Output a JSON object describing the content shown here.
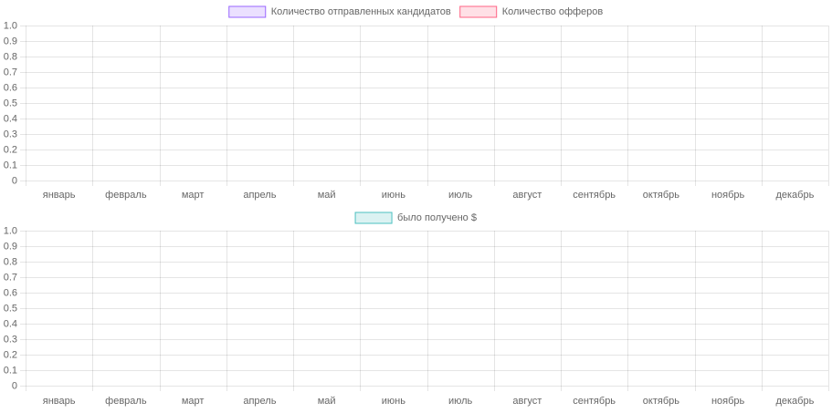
{
  "chart_data": [
    {
      "type": "bar",
      "categories": [
        "январь",
        "февраль",
        "март",
        "апрель",
        "май",
        "июнь",
        "июль",
        "август",
        "сентябрь",
        "октябрь",
        "ноябрь",
        "декабрь"
      ],
      "series": [
        {
          "name": "Количество отправленных кандидатов",
          "color": "#9966ff",
          "values": [
            null,
            null,
            null,
            null,
            null,
            null,
            null,
            null,
            null,
            null,
            null,
            null
          ]
        },
        {
          "name": "Количество офферов",
          "color": "#ff6384",
          "values": [
            null,
            null,
            null,
            null,
            null,
            null,
            null,
            null,
            null,
            null,
            null,
            null
          ]
        }
      ],
      "ylim": [
        0,
        1
      ],
      "yticks": [
        0,
        0.1,
        0.2,
        0.3,
        0.4,
        0.5,
        0.6,
        0.7,
        0.8,
        0.9,
        {
          "value": 1,
          "label": "1.0"
        }
      ],
      "grid": true
    },
    {
      "type": "bar",
      "categories": [
        "январь",
        "февраль",
        "март",
        "апрель",
        "май",
        "июнь",
        "июль",
        "август",
        "сентябрь",
        "октябрь",
        "ноябрь",
        "декабрь"
      ],
      "series": [
        {
          "name": "было получено $",
          "color": "#4bc0c0",
          "values": [
            null,
            null,
            null,
            null,
            null,
            null,
            null,
            null,
            null,
            null,
            null,
            null
          ]
        }
      ],
      "ylim": [
        0,
        1
      ],
      "yticks": [
        0,
        0.1,
        0.2,
        0.3,
        0.4,
        0.5,
        0.6,
        0.7,
        0.8,
        0.9,
        {
          "value": 1,
          "label": "1.0"
        }
      ],
      "grid": true
    }
  ]
}
